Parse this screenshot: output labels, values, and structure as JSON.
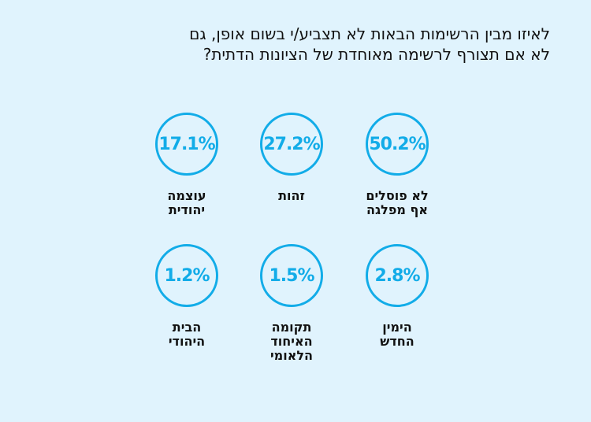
{
  "chart_data": {
    "type": "table",
    "title_lines": [
      "לאיזו מבין הרשימות הבאות לא תצביע/י בשום אופן, גם",
      "לא אם תצורף לרשימה מאוחדת של הציונות הדתית?"
    ],
    "accent_color": "#12ace8",
    "background_color": "#e0f3fd",
    "items": [
      {
        "value": "50.2%",
        "label_lines": [
          "לא פוסלים",
          "אף מפלגה"
        ]
      },
      {
        "value": "27.2%",
        "label_lines": [
          "זהות"
        ]
      },
      {
        "value": "17.1%",
        "label_lines": [
          "עוצמה",
          "יהודית"
        ]
      },
      {
        "value": "2.8%",
        "label_lines": [
          "הימין",
          "החדש"
        ]
      },
      {
        "value": "1.5%",
        "label_lines": [
          "תקומה",
          "האיחוד",
          "הלאומי"
        ]
      },
      {
        "value": "1.2%",
        "label_lines": [
          "הבית",
          "היהודי"
        ]
      }
    ]
  }
}
